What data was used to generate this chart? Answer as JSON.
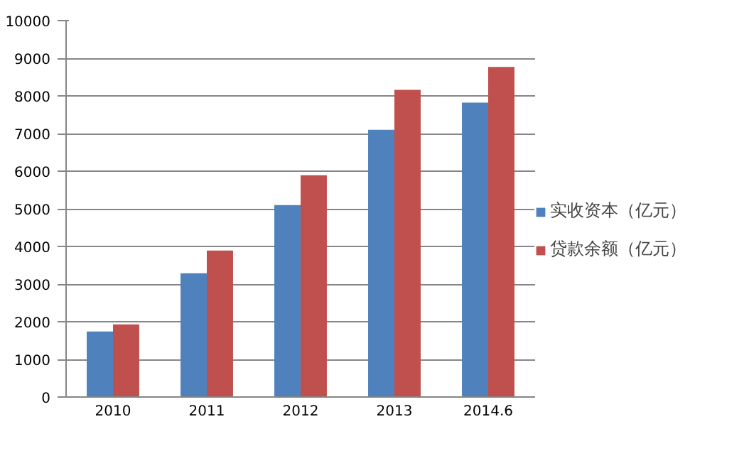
{
  "chart_data": {
    "type": "bar",
    "categories": [
      "2010",
      "2011",
      "2012",
      "2013",
      "2014.6"
    ],
    "series": [
      {
        "name": "实收资本（亿元）",
        "color": "#4f81bd",
        "values": [
          1740,
          3290,
          5100,
          7100,
          7820
        ]
      },
      {
        "name": "贷款余额（亿元）",
        "color": "#c0504d",
        "values": [
          1930,
          3890,
          5890,
          8160,
          8770
        ]
      }
    ],
    "ylim": [
      0,
      10000
    ],
    "yticks": [
      0,
      1000,
      2000,
      3000,
      4000,
      5000,
      6000,
      7000,
      8000,
      9000,
      10000
    ],
    "grid": "y",
    "legend": "right"
  }
}
